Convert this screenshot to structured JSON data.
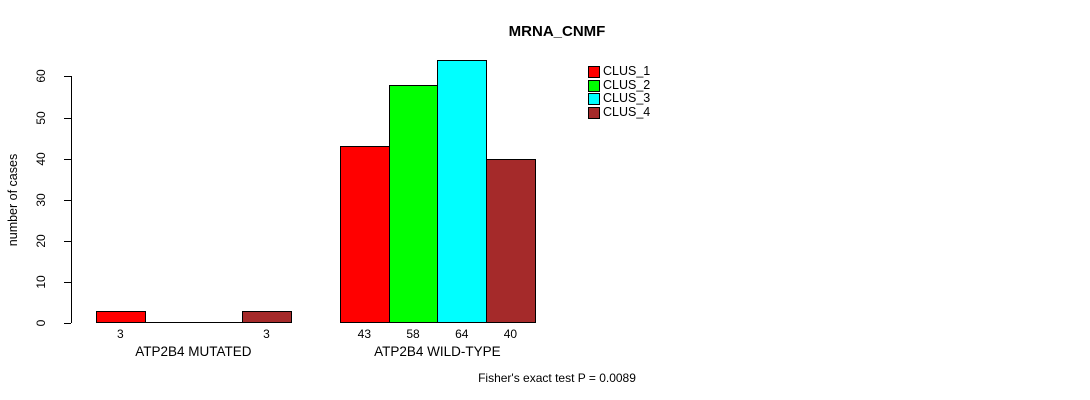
{
  "chart_data": {
    "type": "bar",
    "title": "MRNA_CNMF",
    "ylabel": "number of cases",
    "xlabel": "",
    "categories": [
      "ATP2B4 MUTATED",
      "ATP2B4 WILD-TYPE"
    ],
    "series": [
      {
        "name": "CLUS_1",
        "color": "#ff0000",
        "values": [
          3,
          43
        ]
      },
      {
        "name": "CLUS_2",
        "color": "#00ff00",
        "values": [
          0,
          58
        ]
      },
      {
        "name": "CLUS_3",
        "color": "#00ffff",
        "values": [
          0,
          64
        ]
      },
      {
        "name": "CLUS_4",
        "color": "#a52a2a",
        "values": [
          3,
          40
        ]
      }
    ],
    "ylim": [
      0,
      60
    ],
    "yticks": [
      0,
      10,
      20,
      30,
      40,
      50,
      60
    ],
    "grid": false,
    "legend_position": "top-right-inside",
    "value_labels": {
      "show": true,
      "hide_zero": true
    },
    "note": "Fisher's exact test P = 0.0089"
  }
}
